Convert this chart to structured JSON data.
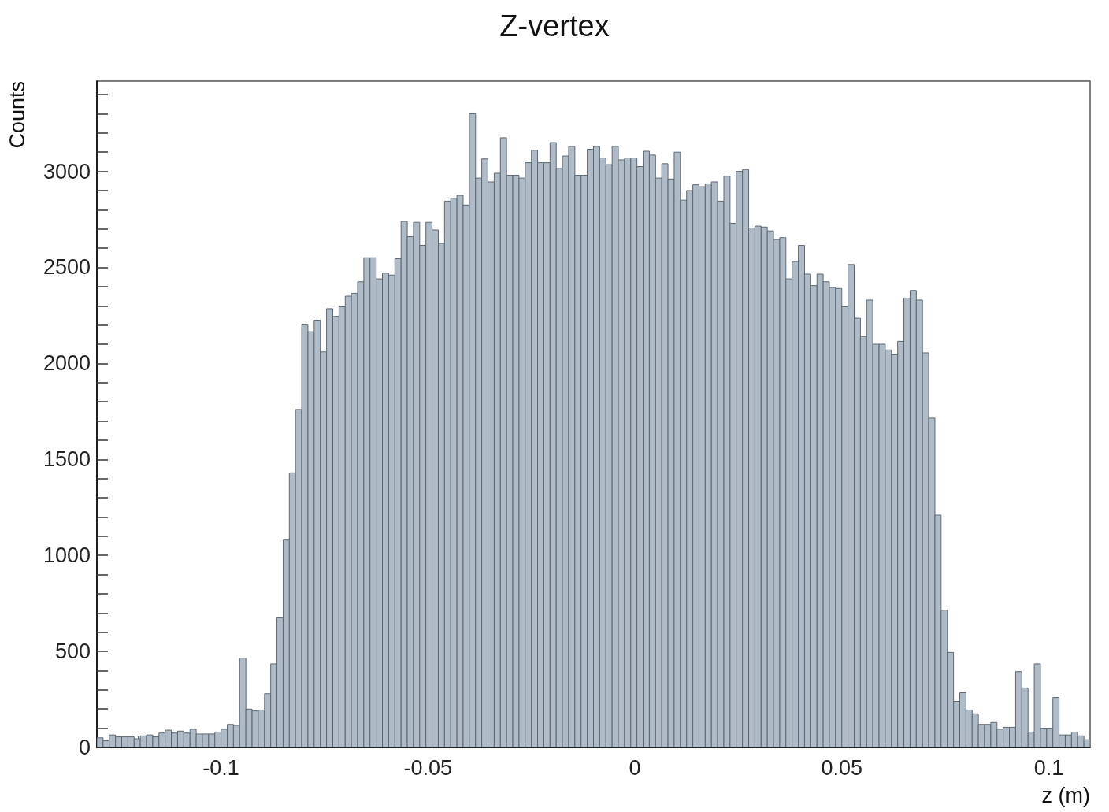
{
  "chart_data": {
    "type": "histogram",
    "title": "Z-vertex",
    "xlabel": "z (m)",
    "ylabel": "Counts",
    "color": "#afbcc8",
    "bins": [
      -0.13,
      -0.1285,
      -0.127,
      -0.1255,
      -0.124,
      -0.1225,
      -0.121,
      -0.1195,
      -0.118,
      -0.1165,
      -0.115,
      -0.1135,
      -0.112,
      -0.1105,
      -0.109,
      -0.1075,
      -0.106,
      -0.1045,
      -0.103,
      -0.1015,
      -0.1,
      -0.0985,
      -0.097,
      -0.0955,
      -0.094,
      -0.0925,
      -0.091,
      -0.0895,
      -0.088,
      -0.0865,
      -0.085,
      -0.0835,
      -0.082,
      -0.0805,
      -0.079,
      -0.0775,
      -0.076,
      -0.0745,
      -0.073,
      -0.0715,
      -0.07,
      -0.0685,
      -0.067,
      -0.0655,
      -0.064,
      -0.0625,
      -0.061,
      -0.0595,
      -0.058,
      -0.0565,
      -0.055,
      -0.0535,
      -0.052,
      -0.0505,
      -0.049,
      -0.0475,
      -0.046,
      -0.0445,
      -0.043,
      -0.0415,
      -0.04,
      -0.0385,
      -0.037,
      -0.0355,
      -0.034,
      -0.0325,
      -0.031,
      -0.0295,
      -0.028,
      -0.0265,
      -0.025,
      -0.0235,
      -0.022,
      -0.0205,
      -0.019,
      -0.0175,
      -0.016,
      -0.0145,
      -0.013,
      -0.0115,
      -0.01,
      -0.0085,
      -0.007,
      -0.0055,
      -0.004,
      -0.0025,
      -0.001,
      0.0005,
      0.002,
      0.0035,
      0.005,
      0.0065,
      0.008,
      0.0095,
      0.011,
      0.0125,
      0.014,
      0.0155,
      0.017,
      0.0185,
      0.02,
      0.0215,
      0.023,
      0.0245,
      0.026,
      0.0275,
      0.029,
      0.0305,
      0.032,
      0.0335,
      0.035,
      0.0365,
      0.038,
      0.0395,
      0.041,
      0.0425,
      0.044,
      0.0455,
      0.047,
      0.0485,
      0.05,
      0.0515,
      0.053,
      0.0545,
      0.056,
      0.0575,
      0.059,
      0.0605,
      0.062,
      0.0635,
      0.065,
      0.0665,
      0.068,
      0.0695,
      0.071,
      0.0725,
      0.074,
      0.0755,
      0.077,
      0.0785,
      0.08,
      0.0815,
      0.083,
      0.0845,
      0.086,
      0.0875,
      0.089,
      0.0905,
      0.092,
      0.0935,
      0.095,
      0.0965,
      0.098,
      0.0995,
      0.101,
      0.1025,
      0.104,
      0.1055,
      0.107,
      0.1085,
      0.11
    ],
    "values": [
      50,
      35,
      65,
      55,
      55,
      55,
      45,
      60,
      65,
      55,
      75,
      90,
      75,
      85,
      75,
      95,
      70,
      70,
      70,
      80,
      95,
      120,
      115,
      465,
      200,
      190,
      195,
      280,
      435,
      675,
      1080,
      1430,
      1760,
      2200,
      2165,
      2225,
      2060,
      2285,
      2245,
      2295,
      2350,
      2365,
      2425,
      2550,
      2550,
      2440,
      2470,
      2460,
      2545,
      2740,
      2660,
      2735,
      2615,
      2735,
      2695,
      2625,
      2845,
      2860,
      2875,
      2825,
      3300,
      2965,
      3065,
      2945,
      2990,
      3175,
      2980,
      2980,
      2965,
      3045,
      3110,
      3045,
      3045,
      3150,
      3015,
      3080,
      3130,
      2980,
      2980,
      3115,
      3130,
      3070,
      3035,
      3130,
      3060,
      3070,
      3070,
      3025,
      3105,
      3085,
      2965,
      3040,
      2960,
      3100,
      2850,
      2900,
      2930,
      2920,
      2935,
      2945,
      2845,
      2975,
      2730,
      3000,
      3010,
      2705,
      2715,
      2710,
      2690,
      2645,
      2655,
      2440,
      2530,
      2615,
      2465,
      2405,
      2465,
      2425,
      2395,
      2390,
      2295,
      2515,
      2235,
      2140,
      2330,
      2100,
      2100,
      2070,
      2045,
      2115,
      2340,
      2380,
      2330,
      2055,
      1715,
      1210,
      715,
      495,
      240,
      285,
      195,
      175,
      120,
      120,
      130,
      95,
      105,
      105,
      395,
      310,
      80,
      435,
      100,
      100,
      260,
      65,
      65,
      80,
      60,
      40
    ],
    "xlim": [
      -0.13,
      0.11
    ],
    "xticks": [
      -0.1,
      -0.05,
      0,
      0.05,
      0.1,
      {
        "value": -0.12,
        "label": null
      },
      {
        "value": -0.11,
        "label": null
      },
      {
        "value": -0.09,
        "label": null
      },
      {
        "value": -0.08,
        "label": null
      },
      {
        "value": -0.07,
        "label": null
      },
      {
        "value": -0.06,
        "label": null
      },
      {
        "value": -0.04,
        "label": null
      },
      {
        "value": -0.03,
        "label": null
      },
      {
        "value": -0.02,
        "label": null
      },
      {
        "value": -0.01,
        "label": null
      },
      {
        "value": 0.01,
        "label": null
      },
      {
        "value": 0.02,
        "label": null
      },
      {
        "value": 0.03,
        "label": null
      },
      {
        "value": 0.04,
        "label": null
      },
      {
        "value": 0.06,
        "label": null
      },
      {
        "value": 0.07,
        "label": null
      },
      {
        "value": 0.08,
        "label": null
      },
      {
        "value": 0.09,
        "label": null
      }
    ],
    "ylim": [
      0,
      3470
    ],
    "yticks": [
      0,
      500,
      1000,
      1500,
      2000,
      2500,
      3000,
      {
        "value": 100,
        "label": null
      },
      {
        "value": 200,
        "label": null
      },
      {
        "value": 300,
        "label": null
      },
      {
        "value": 400,
        "label": null
      },
      {
        "value": 600,
        "label": null
      },
      {
        "value": 700,
        "label": null
      },
      {
        "value": 800,
        "label": null
      },
      {
        "value": 900,
        "label": null
      },
      {
        "value": 1100,
        "label": null
      },
      {
        "value": 1200,
        "label": null
      },
      {
        "value": 1300,
        "label": null
      },
      {
        "value": 1400,
        "label": null
      },
      {
        "value": 1600,
        "label": null
      },
      {
        "value": 1700,
        "label": null
      },
      {
        "value": 1800,
        "label": null
      },
      {
        "value": 1900,
        "label": null
      },
      {
        "value": 2100,
        "label": null
      },
      {
        "value": 2200,
        "label": null
      },
      {
        "value": 2300,
        "label": null
      },
      {
        "value": 2400,
        "label": null
      },
      {
        "value": 2600,
        "label": null
      },
      {
        "value": 2700,
        "label": null
      },
      {
        "value": 2800,
        "label": null
      },
      {
        "value": 2900,
        "label": null
      },
      {
        "value": 3100,
        "label": null
      },
      {
        "value": 3200,
        "label": null
      },
      {
        "value": 3300,
        "label": null
      },
      {
        "value": 3400,
        "label": null
      }
    ]
  }
}
